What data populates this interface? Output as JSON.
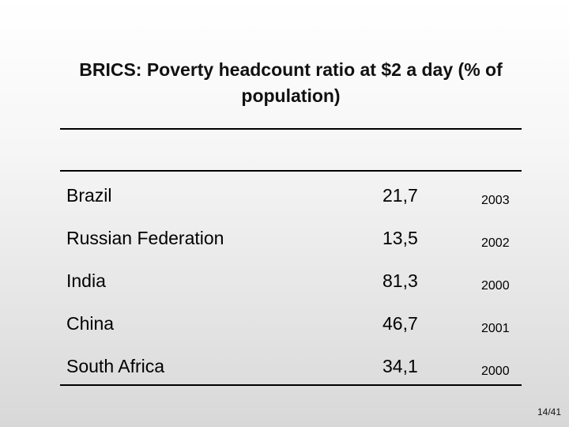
{
  "title": "BRICS: Poverty headcount ratio at $2 a day (% of population)",
  "table": {
    "rows": [
      {
        "country": "Brazil",
        "value": "21,7",
        "year": "2003"
      },
      {
        "country": "Russian Federation",
        "value": "13,5",
        "year": "2002"
      },
      {
        "country": "India",
        "value": "81,3",
        "year": "2000"
      },
      {
        "country": "China",
        "value": "46,7",
        "year": "2001"
      },
      {
        "country": "South Africa",
        "value": "34,1",
        "year": "2000"
      }
    ]
  },
  "page_number": "14/41"
}
